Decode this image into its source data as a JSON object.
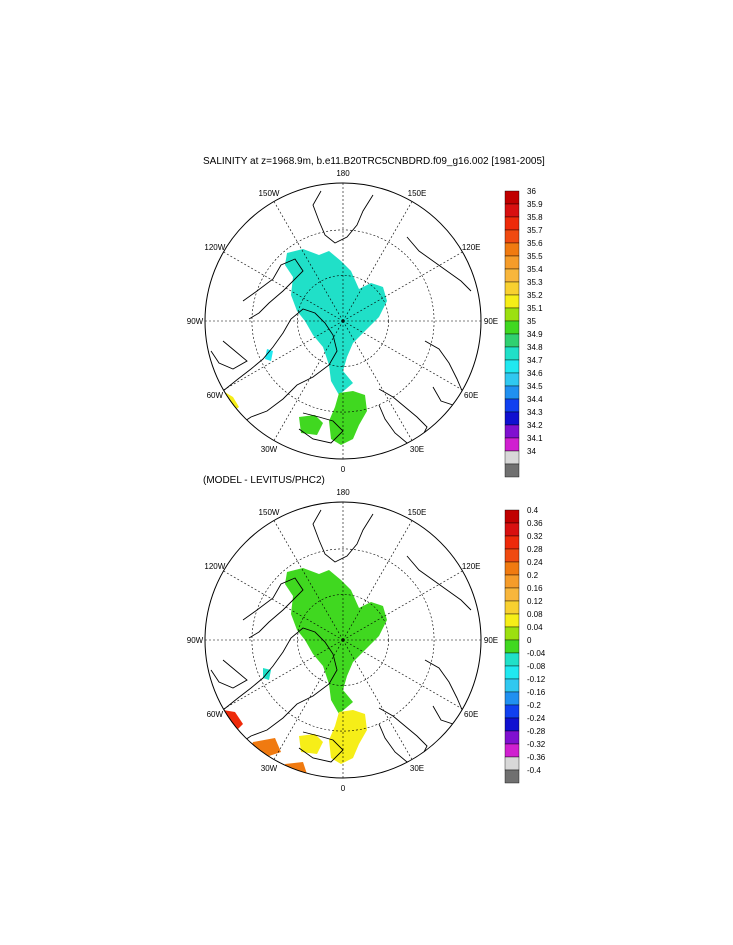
{
  "panels": [
    {
      "title": "SALINITY at z=1968.9m, b.e11.B20TRC5CNBDRD.f09_g16.002 [1981-2005]",
      "center": [
        343,
        321
      ],
      "radius": 138,
      "lon_labels": [
        "180",
        "150E",
        "120E",
        "90E",
        "60E",
        "30E",
        "0",
        "30W",
        "60W",
        "90W",
        "120W",
        "150W"
      ],
      "colorbar": {
        "labels": [
          "36",
          "35.9",
          "35.8",
          "35.7",
          "35.6",
          "35.5",
          "35.4",
          "35.3",
          "35.2",
          "35.1",
          "35",
          "34.9",
          "34.8",
          "34.7",
          "34.6",
          "34.5",
          "34.4",
          "34.3",
          "34.2",
          "34.1",
          "34"
        ],
        "colors": [
          "#c00000",
          "#d81010",
          "#ee2a0a",
          "#f04a10",
          "#f07a10",
          "#f59c2a",
          "#f8b63c",
          "#f8d030",
          "#f6ee18",
          "#9ce010",
          "#40d820",
          "#30d070",
          "#20e0c8",
          "#20e8f0",
          "#30c8f0",
          "#2090f0",
          "#1040f0",
          "#1010d0",
          "#8010d0",
          "#d020d0",
          "#d8d8d8",
          "#707070"
        ],
        "extra_labels": []
      },
      "field_colors": {
        "main": "#20e0c8",
        "atl": "#40d820",
        "warm": "#f6ee18",
        "speck": "#20e8f0"
      }
    },
    {
      "title": "(MODEL - LEVITUS/PHC2)",
      "center": [
        343,
        640
      ],
      "radius": 138,
      "lon_labels": [
        "180",
        "150E",
        "120E",
        "90E",
        "60E",
        "30E",
        "0",
        "30W",
        "60W",
        "90W",
        "120W",
        "150W"
      ],
      "colorbar": {
        "labels": [
          "0.4",
          "0.36",
          "0.32",
          "0.28",
          "0.24",
          "0.2",
          "0.16",
          "0.12",
          "0.08",
          "0.04",
          "0",
          "-0.04",
          "-0.08",
          "-0.12",
          "-0.16",
          "-0.2",
          "-0.24",
          "-0.28",
          "-0.32",
          "-0.36",
          "-0.4"
        ],
        "colors": [
          "#c00000",
          "#d81010",
          "#ee2a0a",
          "#f04a10",
          "#f07a10",
          "#f59c2a",
          "#f8b63c",
          "#f8d030",
          "#f6ee18",
          "#9ce010",
          "#40d820",
          "#20e0c8",
          "#20e8f0",
          "#30c8f0",
          "#2090f0",
          "#1040f0",
          "#1010d0",
          "#8010d0",
          "#d020d0",
          "#d8d8d8",
          "#707070"
        ],
        "extra_labels": []
      },
      "field_colors": {
        "main": "#40d820",
        "atl": "#f6ee18",
        "orange": "#f07a10",
        "red": "#ee2a0a",
        "speck": "#20e0c8"
      }
    }
  ]
}
